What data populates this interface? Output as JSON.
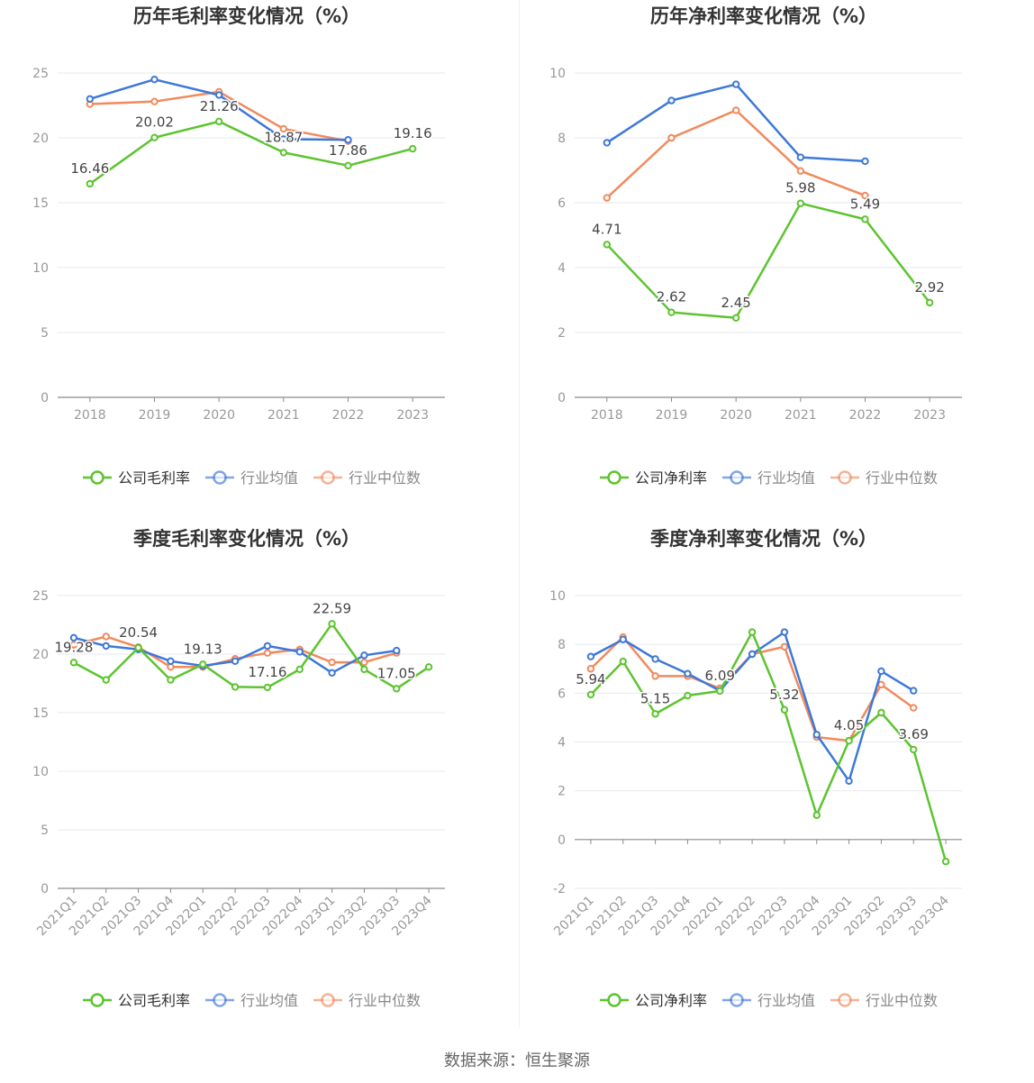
{
  "source_text": "数据来源：恒生聚源",
  "colors": {
    "company": "#5cc42f",
    "average": "#3e78d8",
    "median": "#f08a5d",
    "grid": "#e6e9f0",
    "axis": "#999999",
    "title": "#333333"
  },
  "chart_data": [
    {
      "type": "line",
      "title": "历年毛利率变化情况（%）",
      "categories": [
        "2018",
        "2019",
        "2020",
        "2021",
        "2022",
        "2023"
      ],
      "ylim": [
        0,
        25
      ],
      "yticks": [
        0,
        5,
        10,
        15,
        20,
        25
      ],
      "grid": true,
      "legend_position": "bottom",
      "series": [
        {
          "name": "公司毛利率",
          "role": "company",
          "values": [
            16.46,
            20.02,
            21.26,
            18.87,
            17.86,
            19.16
          ],
          "labels": [
            "16.46",
            "20.02",
            "21.26",
            "18.87",
            "17.86",
            "19.16"
          ]
        },
        {
          "name": "行业均值",
          "role": "average",
          "values": [
            23.0,
            24.5,
            23.3,
            19.9,
            19.85,
            null
          ]
        },
        {
          "name": "行业中位数",
          "role": "median",
          "values": [
            22.6,
            22.8,
            23.55,
            20.7,
            19.75,
            null
          ]
        }
      ]
    },
    {
      "type": "line",
      "title": "历年净利率变化情况（%）",
      "categories": [
        "2018",
        "2019",
        "2020",
        "2021",
        "2022",
        "2023"
      ],
      "ylim": [
        0,
        10
      ],
      "yticks": [
        0,
        2,
        4,
        6,
        8,
        10
      ],
      "grid": true,
      "legend_position": "bottom",
      "series": [
        {
          "name": "公司净利率",
          "role": "company",
          "values": [
            4.71,
            2.62,
            2.45,
            5.98,
            5.49,
            2.92
          ],
          "labels": [
            "4.71",
            "2.62",
            "2.45",
            "5.98",
            "5.49",
            "2.92"
          ]
        },
        {
          "name": "行业均值",
          "role": "average",
          "values": [
            7.85,
            9.15,
            9.65,
            7.4,
            7.28,
            null
          ]
        },
        {
          "name": "行业中位数",
          "role": "median",
          "values": [
            6.15,
            8.0,
            8.85,
            6.98,
            6.22,
            null
          ]
        }
      ]
    },
    {
      "type": "line",
      "title": "季度毛利率变化情况（%）",
      "categories": [
        "2021Q1",
        "2021Q2",
        "2021Q3",
        "2021Q4",
        "2022Q1",
        "2022Q2",
        "2022Q3",
        "2022Q4",
        "2023Q1",
        "2023Q2",
        "2023Q3",
        "2023Q4"
      ],
      "ylim": [
        0,
        25
      ],
      "yticks": [
        0,
        5,
        10,
        15,
        20,
        25
      ],
      "grid": true,
      "legend_position": "bottom",
      "series": [
        {
          "name": "公司毛利率",
          "role": "company",
          "values": [
            19.28,
            17.8,
            20.54,
            17.8,
            19.13,
            17.2,
            17.16,
            18.7,
            22.59,
            18.7,
            17.05,
            18.9
          ],
          "labels": [
            "19.28",
            "",
            "20.54",
            "",
            "19.13",
            "",
            "17.16",
            "",
            "22.59",
            "",
            "17.05",
            ""
          ]
        },
        {
          "name": "行业均值",
          "role": "average",
          "values": [
            21.4,
            20.7,
            20.4,
            19.4,
            19.0,
            19.4,
            20.7,
            20.2,
            18.4,
            19.9,
            20.3,
            null
          ]
        },
        {
          "name": "行业中位数",
          "role": "median",
          "values": [
            20.8,
            21.5,
            20.6,
            18.9,
            18.9,
            19.6,
            20.1,
            20.4,
            19.3,
            19.3,
            20.1,
            null
          ]
        }
      ]
    },
    {
      "type": "line",
      "title": "季度净利率变化情况（%）",
      "categories": [
        "2021Q1",
        "2021Q2",
        "2021Q3",
        "2021Q4",
        "2022Q1",
        "2022Q2",
        "2022Q3",
        "2022Q4",
        "2023Q1",
        "2023Q2",
        "2023Q3",
        "2023Q4"
      ],
      "ylim": [
        -2,
        10
      ],
      "yticks": [
        -2,
        0,
        2,
        4,
        6,
        8,
        10
      ],
      "grid": true,
      "legend_position": "bottom",
      "series": [
        {
          "name": "公司净利率",
          "role": "company",
          "values": [
            5.94,
            7.3,
            5.15,
            5.9,
            6.09,
            8.5,
            5.32,
            1.0,
            4.05,
            5.2,
            3.69,
            -0.9
          ],
          "labels": [
            "5.94",
            "",
            "5.15",
            "",
            "6.09",
            "",
            "5.32",
            "",
            "4.05",
            "",
            "3.69",
            ""
          ]
        },
        {
          "name": "行业均值",
          "role": "average",
          "values": [
            7.5,
            8.2,
            7.4,
            6.8,
            6.1,
            7.6,
            8.5,
            4.3,
            2.4,
            6.9,
            6.1,
            null
          ]
        },
        {
          "name": "行业中位数",
          "role": "median",
          "values": [
            7.0,
            8.3,
            6.7,
            6.7,
            6.2,
            7.6,
            7.9,
            4.2,
            4.05,
            6.35,
            5.4,
            null
          ]
        }
      ]
    }
  ]
}
